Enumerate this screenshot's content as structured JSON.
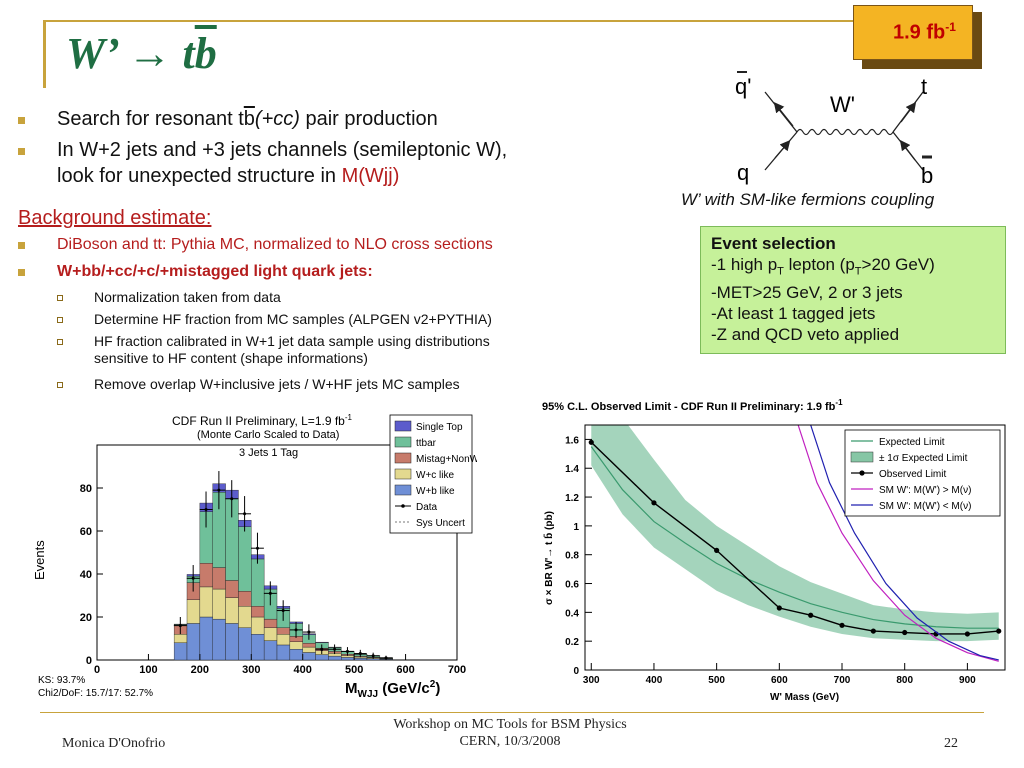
{
  "slide": {
    "title_prefix": "W’ → t",
    "title_bbar": "b",
    "lumi_badge": "1.9 fb",
    "lumi_badge_sup": "-1"
  },
  "bullets": [
    {
      "pre": "Search for resonant t",
      "bbar": "b",
      "post_italic": "(+cc)",
      "post": " pair production"
    },
    {
      "line1": "In W+2 jets and +3 jets channels (semileptonic W),",
      "line2_pre": "look for unexpected structure in ",
      "line2_red": "M(Wjj)"
    }
  ],
  "background": {
    "heading": "Background estimate:",
    "item1": "DiBoson and tt: Pythia MC, normalized to NLO cross sections",
    "item2": "W+bb/+cc/+c/+mistagged light quark jets:",
    "subitems": [
      "Normalization taken from data",
      "Determine HF fraction from MC samples (ALPGEN v2+PYTHIA)",
      "HF fraction calibrated in W+1 jet data sample using distributions",
      "sensitive to HF content (shape informations)",
      "Remove overlap W+inclusive jets / W+HF jets MC samples"
    ]
  },
  "feynman": {
    "qbar_prime": "q'",
    "q": "q",
    "w_prime": "W'",
    "t": "t",
    "b": "b",
    "caption": "W’ with SM-like fermions coupling"
  },
  "event_selection": {
    "title": "Event selection",
    "line1": "-1 high p",
    "line1_sub": "T",
    "line1_mid": " lepton (p",
    "line1_sub2": "T",
    "line1_end": ">20 GeV)",
    "line2": "-MET>25 GeV, 2 or 3 jets",
    "line3": "-At least 1 tagged jets",
    "line4": "-Z and QCD veto applied"
  },
  "colors": {
    "accent": "#c8a33c",
    "title": "#1f6e43",
    "badge": "#f4b423",
    "red": "#b51d1d",
    "event_box": "#c6f19a"
  },
  "chart_data": [
    {
      "type": "bar",
      "title": "CDF Run II Preliminary, L=1.9 fb",
      "title_sup": "-1",
      "subtitle": "(Monte Carlo Scaled to Data)",
      "annotation": "3 Jets 1 Tag",
      "xlabel": "M",
      "xlabel_sub": "WJJ",
      "xlabel_unit": " (GeV/c",
      "xlabel_sup": "2",
      "xlabel_end": ")",
      "ylabel": "Events",
      "xlim": [
        0,
        700
      ],
      "ylim": [
        0,
        100
      ],
      "xticks": [
        0,
        100,
        200,
        300,
        400,
        500,
        600,
        700
      ],
      "yticks": [
        0,
        20,
        40,
        60,
        80
      ],
      "bin_width": 25,
      "bins_start": 150,
      "stack_order": [
        "W+b like",
        "W+c like",
        "Mistag+NonW",
        "ttbar",
        "Single Top"
      ],
      "series": [
        {
          "name": "W+b like",
          "color": "#6f8fd6",
          "values": [
            8,
            17,
            20,
            19,
            17,
            15,
            12,
            9,
            7,
            5,
            3.5,
            2.5,
            1.8,
            1.2,
            0.8,
            0.6,
            0.3
          ]
        },
        {
          "name": "W+c like",
          "color": "#e3d98f",
          "values": [
            4,
            11,
            14,
            14,
            12,
            10,
            8,
            6,
            5,
            3.5,
            2.5,
            1.8,
            1.3,
            0.9,
            0.6,
            0.4,
            0.2
          ]
        },
        {
          "name": "Mistag+NonW",
          "color": "#c77b6b",
          "values": [
            4,
            8,
            11,
            10,
            8,
            7,
            5,
            4,
            3,
            2.5,
            1.8,
            1.2,
            0.9,
            0.6,
            0.4,
            0.3,
            0.2
          ]
        },
        {
          "name": "ttbar",
          "color": "#6fc09a",
          "values": [
            0.5,
            3,
            24,
            35,
            38,
            30,
            22,
            14,
            9,
            6,
            4,
            2.5,
            1.8,
            1.2,
            0.8,
            0.6,
            0.4
          ]
        },
        {
          "name": "Single Top",
          "color": "#5c5ccc",
          "values": [
            0.2,
            0.8,
            4,
            4,
            4,
            3,
            2,
            1.5,
            1,
            0.7,
            0.4,
            0.3,
            0.2,
            0.1,
            0.1,
            0.1,
            0
          ]
        }
      ],
      "data": {
        "name": "Data",
        "x": [
          162,
          187,
          212,
          237,
          262,
          287,
          312,
          337,
          362,
          387,
          412,
          437,
          462,
          487,
          512,
          537,
          562
        ],
        "y": [
          16,
          38,
          70,
          79,
          75,
          68,
          52,
          31,
          23,
          14,
          13,
          5,
          5,
          4,
          3,
          2,
          1
        ]
      },
      "legend": [
        "Single Top",
        "ttbar",
        "Mistag+NonW",
        "W+c like",
        "W+b like",
        "Data",
        "Sys Uncert"
      ],
      "legend_position": "top-right",
      "stats": [
        "KS: 93.7%",
        "Chi2/DoF: 15.7/17: 52.7%"
      ]
    },
    {
      "type": "line",
      "title": "95% C.L. Observed Limit - CDF Run II Preliminary: 1.9 fb",
      "title_sup": "-1",
      "xlabel": "W' Mass (GeV)",
      "ylabel": "σ × BR W'→ t b̄ (pb)",
      "xlim": [
        290,
        960
      ],
      "ylim": [
        0,
        1.7
      ],
      "xticks": [
        300,
        400,
        500,
        600,
        700,
        800,
        900
      ],
      "yticks": [
        0,
        0.2,
        0.4,
        0.6,
        0.8,
        1,
        1.2,
        1.4,
        1.6
      ],
      "band": {
        "name": "± 1σ Expected Limit",
        "x": [
          300,
          350,
          400,
          450,
          500,
          550,
          600,
          650,
          700,
          750,
          800,
          850,
          900,
          950
        ],
        "low": [
          1.42,
          1.08,
          0.85,
          0.7,
          0.55,
          0.45,
          0.37,
          0.3,
          0.25,
          0.22,
          0.21,
          0.2,
          0.2,
          0.21
        ],
        "high": [
          1.75,
          1.75,
          1.46,
          1.18,
          1.0,
          0.86,
          0.72,
          0.61,
          0.53,
          0.45,
          0.42,
          0.4,
          0.39,
          0.4
        ]
      },
      "series": [
        {
          "name": "Expected Limit",
          "color": "#3a9a6e",
          "x": [
            300,
            350,
            400,
            450,
            500,
            550,
            600,
            650,
            700,
            750,
            800,
            850,
            900,
            950
          ],
          "y": [
            1.55,
            1.25,
            1.03,
            0.88,
            0.74,
            0.63,
            0.54,
            0.46,
            0.4,
            0.35,
            0.32,
            0.3,
            0.29,
            0.29
          ]
        },
        {
          "name": "Observed Limit",
          "color": "#000000",
          "x": [
            300,
            400,
            500,
            600,
            650,
            700,
            750,
            800,
            850,
            900,
            950
          ],
          "y": [
            1.58,
            1.16,
            0.83,
            0.43,
            0.38,
            0.31,
            0.27,
            0.26,
            0.25,
            0.25,
            0.27
          ]
        },
        {
          "name": "SM W': M(W') > M(ν)",
          "color": "#c020c0",
          "x": [
            630,
            660,
            700,
            750,
            800,
            850,
            900,
            950
          ],
          "y": [
            1.7,
            1.3,
            0.95,
            0.62,
            0.38,
            0.22,
            0.12,
            0.06
          ]
        },
        {
          "name": "SM W': M(W') < M(ν)",
          "color": "#2020b0",
          "x": [
            650,
            680,
            720,
            770,
            820,
            870,
            920,
            950
          ],
          "y": [
            1.7,
            1.3,
            0.95,
            0.6,
            0.36,
            0.2,
            0.1,
            0.07
          ]
        }
      ],
      "legend_position": "top-right",
      "grid": false
    }
  ],
  "footer": {
    "author": "Monica D'Onofrio",
    "event_line1": "Workshop on MC Tools for BSM Physics",
    "event_line2": "CERN, 10/3/2008",
    "page": "22"
  }
}
